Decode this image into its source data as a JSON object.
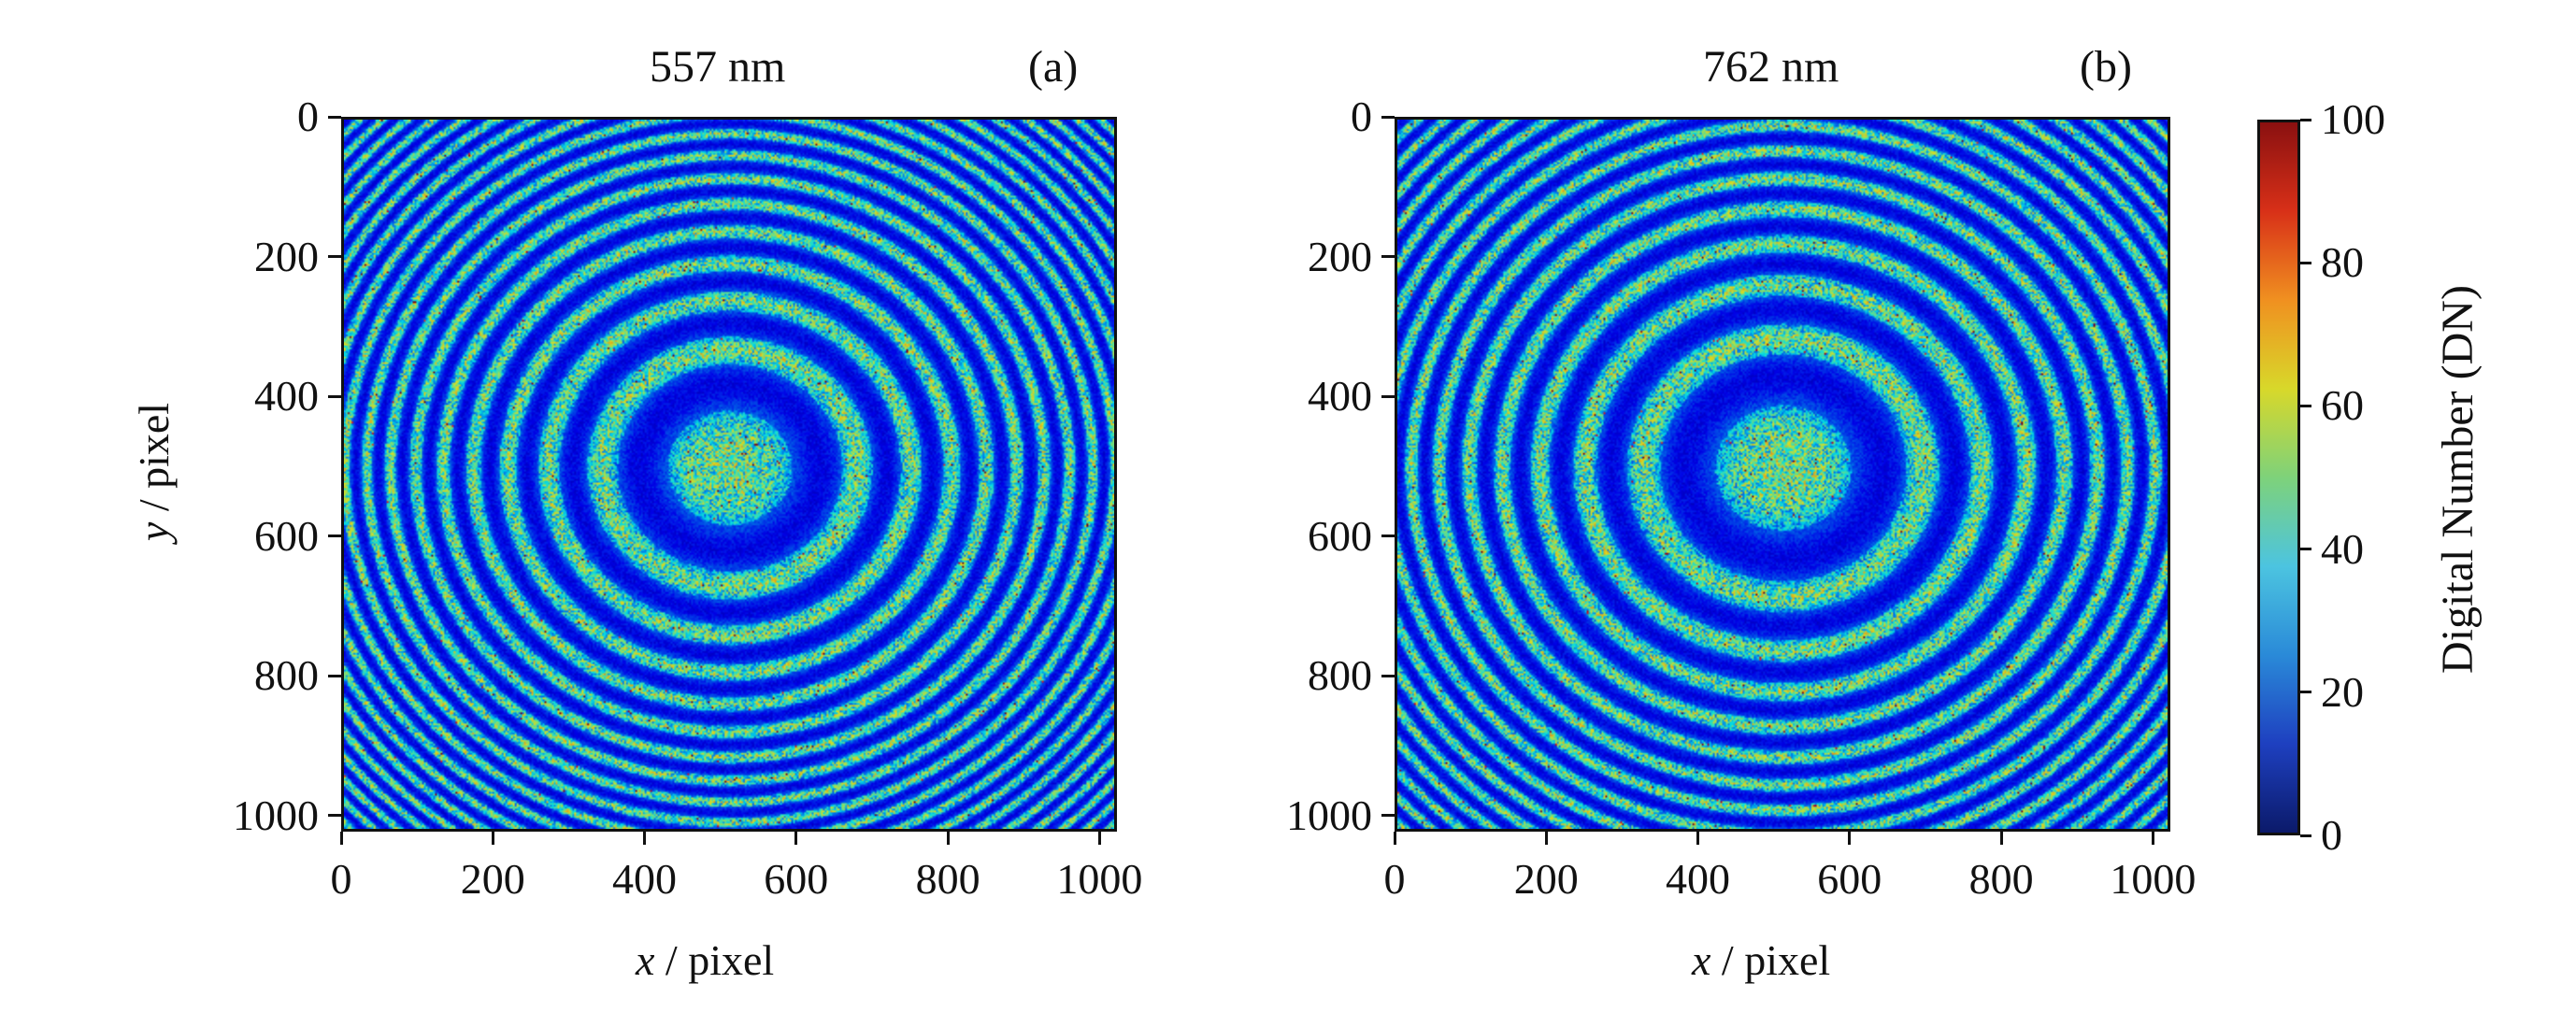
{
  "chart_data": [
    {
      "type": "heatmap",
      "title": "557 nm",
      "panel_label": "(a)",
      "x_label": "/ pixel",
      "x_label_var": "x",
      "y_label": "/ pixel",
      "y_label_var": "y",
      "xlim": [
        0,
        1023
      ],
      "ylim": [
        0,
        1023
      ],
      "y_inverted": true,
      "x_ticks": [
        "0",
        "200",
        "400",
        "600",
        "800",
        "1000"
      ],
      "y_ticks": [
        "0",
        "200",
        "400",
        "600",
        "800",
        "1000"
      ],
      "pattern": "concentric interference rings centered near (512, 500)"
    },
    {
      "type": "heatmap",
      "title": "762 nm",
      "panel_label": "(b)",
      "x_label": "/ pixel",
      "x_label_var": "x",
      "xlim": [
        0,
        1023
      ],
      "ylim": [
        0,
        1023
      ],
      "y_inverted": true,
      "x_ticks": [
        "0",
        "200",
        "400",
        "600",
        "800",
        "1000"
      ],
      "y_ticks": [
        "0",
        "200",
        "400",
        "600",
        "800",
        "1000"
      ],
      "pattern": "concentric interference rings centered near (512, 500)"
    }
  ],
  "colorbar": {
    "label": "Digital Number (DN)",
    "ticks": [
      "0",
      "20",
      "40",
      "60",
      "80",
      "100"
    ],
    "range": [
      0,
      100
    ],
    "colormap": "jet",
    "colors": [
      "#0b1a6a",
      "#1e40c0",
      "#2a8ad8",
      "#4cc4e0",
      "#7ed27a",
      "#d8d82a",
      "#f09020",
      "#d83018",
      "#8a1010"
    ]
  }
}
